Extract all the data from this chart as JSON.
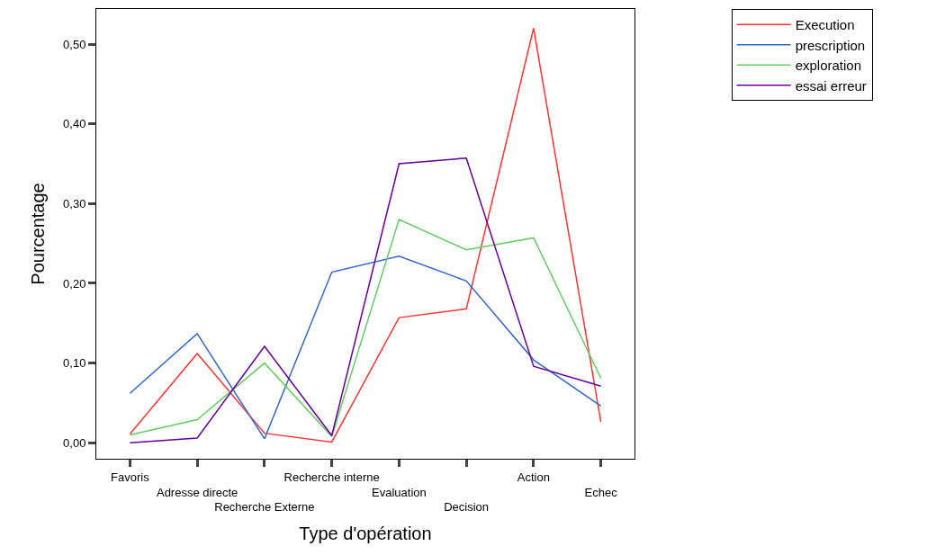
{
  "chart_data": {
    "type": "line",
    "xlabel": "Type d'opération",
    "ylabel": "Pourcentage",
    "categories": [
      "Favoris",
      "Adresse directe",
      "Recherche Externe",
      "Recherche interne",
      "Evaluation",
      "Decision",
      "Action",
      "Echec"
    ],
    "series": [
      {
        "name": "Execution",
        "color": "#ff3333",
        "values": [
          0.011,
          0.112,
          0.012,
          0.001,
          0.157,
          0.168,
          0.52,
          0.026
        ]
      },
      {
        "name": "prescription",
        "color": "#3366cc",
        "values": [
          0.062,
          0.137,
          0.005,
          0.214,
          0.234,
          0.203,
          0.104,
          0.046
        ]
      },
      {
        "name": "exploration",
        "color": "#66cc66",
        "values": [
          0.01,
          0.029,
          0.1,
          0.008,
          0.28,
          0.242,
          0.257,
          0.081
        ]
      },
      {
        "name": "essai erreur",
        "color": "#660099",
        "values": [
          0.0,
          0.006,
          0.121,
          0.009,
          0.35,
          0.357,
          0.096,
          0.071
        ]
      }
    ],
    "ylim": [
      -0.02,
      0.544
    ],
    "yticks": [
      {
        "value": 0,
        "label": "0,00"
      },
      {
        "value": 0.1,
        "label": "0,10"
      },
      {
        "value": 0.2,
        "label": "0,20"
      },
      {
        "value": 0.3,
        "label": "0,30"
      },
      {
        "value": 0.4,
        "label": "0,40"
      },
      {
        "value": 0.5,
        "label": "0,50"
      }
    ],
    "legend": "top right",
    "marker": "none",
    "line_style": "solid"
  }
}
